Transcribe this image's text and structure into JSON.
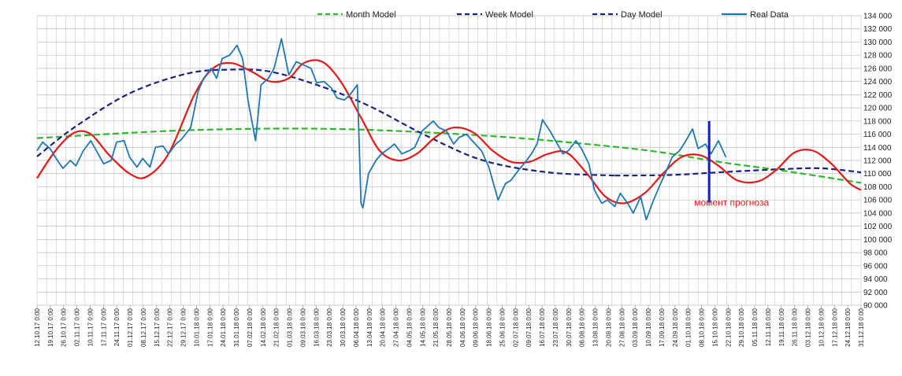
{
  "chart_data": {
    "type": "line",
    "title": "",
    "xlabel": "",
    "ylabel": "",
    "ylim": [
      90000,
      134000
    ],
    "y_ticks": [
      "90 000",
      "92 000",
      "94 000",
      "96 000",
      "98 000",
      "100 000",
      "102 000",
      "104 000",
      "106 000",
      "108 000",
      "110 000",
      "112 000",
      "114 000",
      "116 000",
      "118 000",
      "120 000",
      "122 000",
      "124 000",
      "126 000",
      "128 000",
      "130 000",
      "132 000",
      "134 000"
    ],
    "x_start": "2017-10-12",
    "x_end": "2018-12-31",
    "x_ticks": [
      "12.10.17 0:00",
      "19.10.17 0:00",
      "26.10.17 0:00",
      "02.11.17 0:00",
      "10.11.17 0:00",
      "17.11.17 0:00",
      "24.11.17 0:00",
      "01.12.17 0:00",
      "08.12.17 0:00",
      "15.12.17 0:00",
      "22.12.17 0:00",
      "29.12.17 0:00",
      "10.01.18 0:00",
      "17.01.18 0:00",
      "24.01.18 0:00",
      "31.01.18 0:00",
      "07.02.18 0:00",
      "14.02.18 0:00",
      "21.02.18 0:00",
      "01.03.18 0:00",
      "09.03.18 0:00",
      "16.03.18 0:00",
      "23.03.18 0:00",
      "30.03.18 0:00",
      "06.04.18 0:00",
      "13.04.18 0:00",
      "20.04.18 0:00",
      "27.04.18 0:00",
      "04.05.18 0:00",
      "14.05.18 0:00",
      "21.05.18 0:00",
      "28.05.18 0:00",
      "04.06.18 0:00",
      "09.06.18 0:00",
      "18.06.18 0:00",
      "25.06.18 0:00",
      "02.07.18 0:00",
      "09.07.18 0:00",
      "16.07.18 0:00",
      "23.07.18 0:00",
      "30.07.18 0:00",
      "06.08.18 0:00",
      "13.08.18 0:00",
      "20.08.18 0:00",
      "27.08.18 0:00",
      "03.09.18 0:00",
      "10.09.18 0:00",
      "17.09.18 0:00",
      "24.09.18 0:00",
      "01.10.18 0:00",
      "08.10.18 0:00",
      "15.10.18 0:00",
      "22.10.18 0:00",
      "29.10.18 0:00",
      "05.11.18 0:00",
      "12.11.18 0:00",
      "19.11.18 0:00",
      "26.11.18 0:00",
      "03.12.18 0:00",
      "10.12.18 0:00",
      "17.12.18 0:00",
      "24.12.18 0:00",
      "31.12.18 0:00"
    ],
    "grid": true,
    "legend_position": "top",
    "series": [
      {
        "name": "Month Model",
        "color": "#2db82d",
        "dash": "dashed",
        "x": [
          "2017-10-12",
          "2017-12-15",
          "2018-02-01",
          "2018-03-20",
          "2018-05-01",
          "2018-06-20",
          "2018-08-01",
          "2018-09-10",
          "2018-10-15",
          "2018-11-20",
          "2018-12-31"
        ],
        "y": [
          115400,
          116400,
          116800,
          116800,
          116400,
          115600,
          114600,
          113400,
          111800,
          110400,
          108600
        ]
      },
      {
        "name": "Week Model",
        "color": "#1a237e",
        "dash": "dashed",
        "x": [
          "2017-10-12",
          "2017-11-01",
          "2017-12-01",
          "2018-01-01",
          "2018-01-24",
          "2018-02-15",
          "2018-03-15",
          "2018-04-10",
          "2018-05-10",
          "2018-06-10",
          "2018-07-15",
          "2018-08-20"
        ],
        "y": [
          112600,
          117000,
          122200,
          125200,
          125800,
          125500,
          123200,
          120200,
          115800,
          112000,
          110200,
          109700
        ]
      },
      {
        "name": "Day Model",
        "color": "#1a237e",
        "dash": "dashed",
        "x": [
          "2018-08-20",
          "2018-09-20",
          "2018-10-15",
          "2018-11-20",
          "2018-12-10",
          "2018-12-31"
        ],
        "y": [
          109700,
          109800,
          110200,
          110700,
          110800,
          110200
        ]
      },
      {
        "name": "Real Data",
        "color": "#1f77b4",
        "dash": "solid",
        "x": [
          "2017-10-12",
          "2017-10-15",
          "2017-10-19",
          "2017-10-23",
          "2017-10-26",
          "2017-10-30",
          "2017-11-02",
          "2017-11-06",
          "2017-11-10",
          "2017-11-14",
          "2017-11-17",
          "2017-11-21",
          "2017-11-24",
          "2017-11-28",
          "2017-12-01",
          "2017-12-05",
          "2017-12-08",
          "2017-12-12",
          "2017-12-15",
          "2017-12-19",
          "2017-12-22",
          "2017-12-26",
          "2017-12-29",
          "2018-01-03",
          "2018-01-07",
          "2018-01-10",
          "2018-01-14",
          "2018-01-17",
          "2018-01-20",
          "2018-01-24",
          "2018-01-28",
          "2018-01-31",
          "2018-02-03",
          "2018-02-07",
          "2018-02-10",
          "2018-02-14",
          "2018-02-17",
          "2018-02-21",
          "2018-02-25",
          "2018-03-01",
          "2018-03-05",
          "2018-03-09",
          "2018-03-12",
          "2018-03-16",
          "2018-03-20",
          "2018-03-23",
          "2018-03-27",
          "2018-03-30",
          "2018-04-03",
          "2018-04-05",
          "2018-04-06",
          "2018-04-09",
          "2018-04-13",
          "2018-04-16",
          "2018-04-20",
          "2018-04-23",
          "2018-04-27",
          "2018-05-01",
          "2018-05-04",
          "2018-05-08",
          "2018-05-14",
          "2018-05-17",
          "2018-05-21",
          "2018-05-25",
          "2018-05-28",
          "2018-06-01",
          "2018-06-04",
          "2018-06-09",
          "2018-06-13",
          "2018-06-18",
          "2018-06-22",
          "2018-06-25",
          "2018-06-29",
          "2018-07-02",
          "2018-07-06",
          "2018-07-09",
          "2018-07-12",
          "2018-07-16",
          "2018-07-19",
          "2018-07-23",
          "2018-07-26",
          "2018-07-30",
          "2018-08-02",
          "2018-08-06",
          "2018-08-09",
          "2018-08-13",
          "2018-08-16",
          "2018-08-20",
          "2018-08-23",
          "2018-08-27",
          "2018-08-30",
          "2018-09-03",
          "2018-09-06",
          "2018-09-10",
          "2018-09-13",
          "2018-09-17",
          "2018-09-20",
          "2018-09-24",
          "2018-09-27",
          "2018-10-01",
          "2018-10-04",
          "2018-10-08",
          "2018-10-11",
          "2018-10-15",
          "2018-10-19"
        ],
        "y": [
          113500,
          114800,
          113800,
          112000,
          110800,
          112000,
          111200,
          113500,
          115000,
          113000,
          111500,
          112000,
          114800,
          115000,
          112500,
          111000,
          112300,
          111000,
          114000,
          114200,
          113000,
          114500,
          115200,
          117000,
          122500,
          124500,
          126000,
          124500,
          127500,
          128000,
          129500,
          127500,
          121000,
          115000,
          123500,
          124500,
          126000,
          130500,
          125000,
          127000,
          126500,
          126000,
          123800,
          124000,
          123000,
          121500,
          121200,
          122000,
          123500,
          105500,
          104800,
          110000,
          112000,
          113000,
          113800,
          114500,
          113000,
          113500,
          114000,
          116500,
          118000,
          117000,
          116500,
          114500,
          115500,
          116000,
          115000,
          113500,
          111000,
          106000,
          108500,
          109000,
          110500,
          111500,
          113000,
          114500,
          118200,
          116500,
          115000,
          113000,
          113500,
          115000,
          113800,
          111500,
          107500,
          105500,
          106000,
          105000,
          107000,
          105500,
          104000,
          106500,
          103000,
          106000,
          108000,
          110500,
          112500,
          113500,
          114800,
          116800,
          113800,
          114500,
          113000,
          115000,
          112500
        ]
      },
      {
        "name": "",
        "color": "#e21a1a",
        "dash": "solid",
        "x": [
          "2017-10-12",
          "2017-10-22",
          "2017-11-01",
          "2017-11-10",
          "2017-11-20",
          "2017-12-01",
          "2017-12-10",
          "2017-12-22",
          "2018-01-05",
          "2018-01-15",
          "2018-01-25",
          "2018-02-05",
          "2018-02-15",
          "2018-02-25",
          "2018-03-05",
          "2018-03-15",
          "2018-03-25",
          "2018-04-05",
          "2018-04-15",
          "2018-04-25",
          "2018-05-05",
          "2018-05-15",
          "2018-05-25",
          "2018-06-05",
          "2018-06-15",
          "2018-06-25",
          "2018-07-05",
          "2018-07-15",
          "2018-07-25",
          "2018-08-05",
          "2018-08-15",
          "2018-08-25",
          "2018-09-05",
          "2018-09-15",
          "2018-09-25",
          "2018-10-05",
          "2018-10-15",
          "2018-10-25",
          "2018-11-05",
          "2018-11-15",
          "2018-11-25",
          "2018-12-05",
          "2018-12-15",
          "2018-12-25",
          "2018-12-31"
        ],
        "y": [
          109300,
          113500,
          116200,
          116000,
          112800,
          110000,
          109500,
          113000,
          122000,
          126000,
          126800,
          125500,
          124000,
          124500,
          126800,
          127000,
          124000,
          118500,
          113500,
          112000,
          113000,
          115500,
          117000,
          116200,
          113500,
          111800,
          111800,
          113000,
          113200,
          110000,
          106500,
          105500,
          107000,
          110000,
          112500,
          112800,
          111200,
          109000,
          108800,
          110500,
          113200,
          113500,
          111500,
          108500,
          107500
        ]
      }
    ],
    "annotations": [
      {
        "text": "момент прогноза",
        "date": "2018-10-10",
        "y": 105500,
        "line_from": 105600,
        "line_to": 118000,
        "line_color": "#1a1aff"
      }
    ]
  }
}
